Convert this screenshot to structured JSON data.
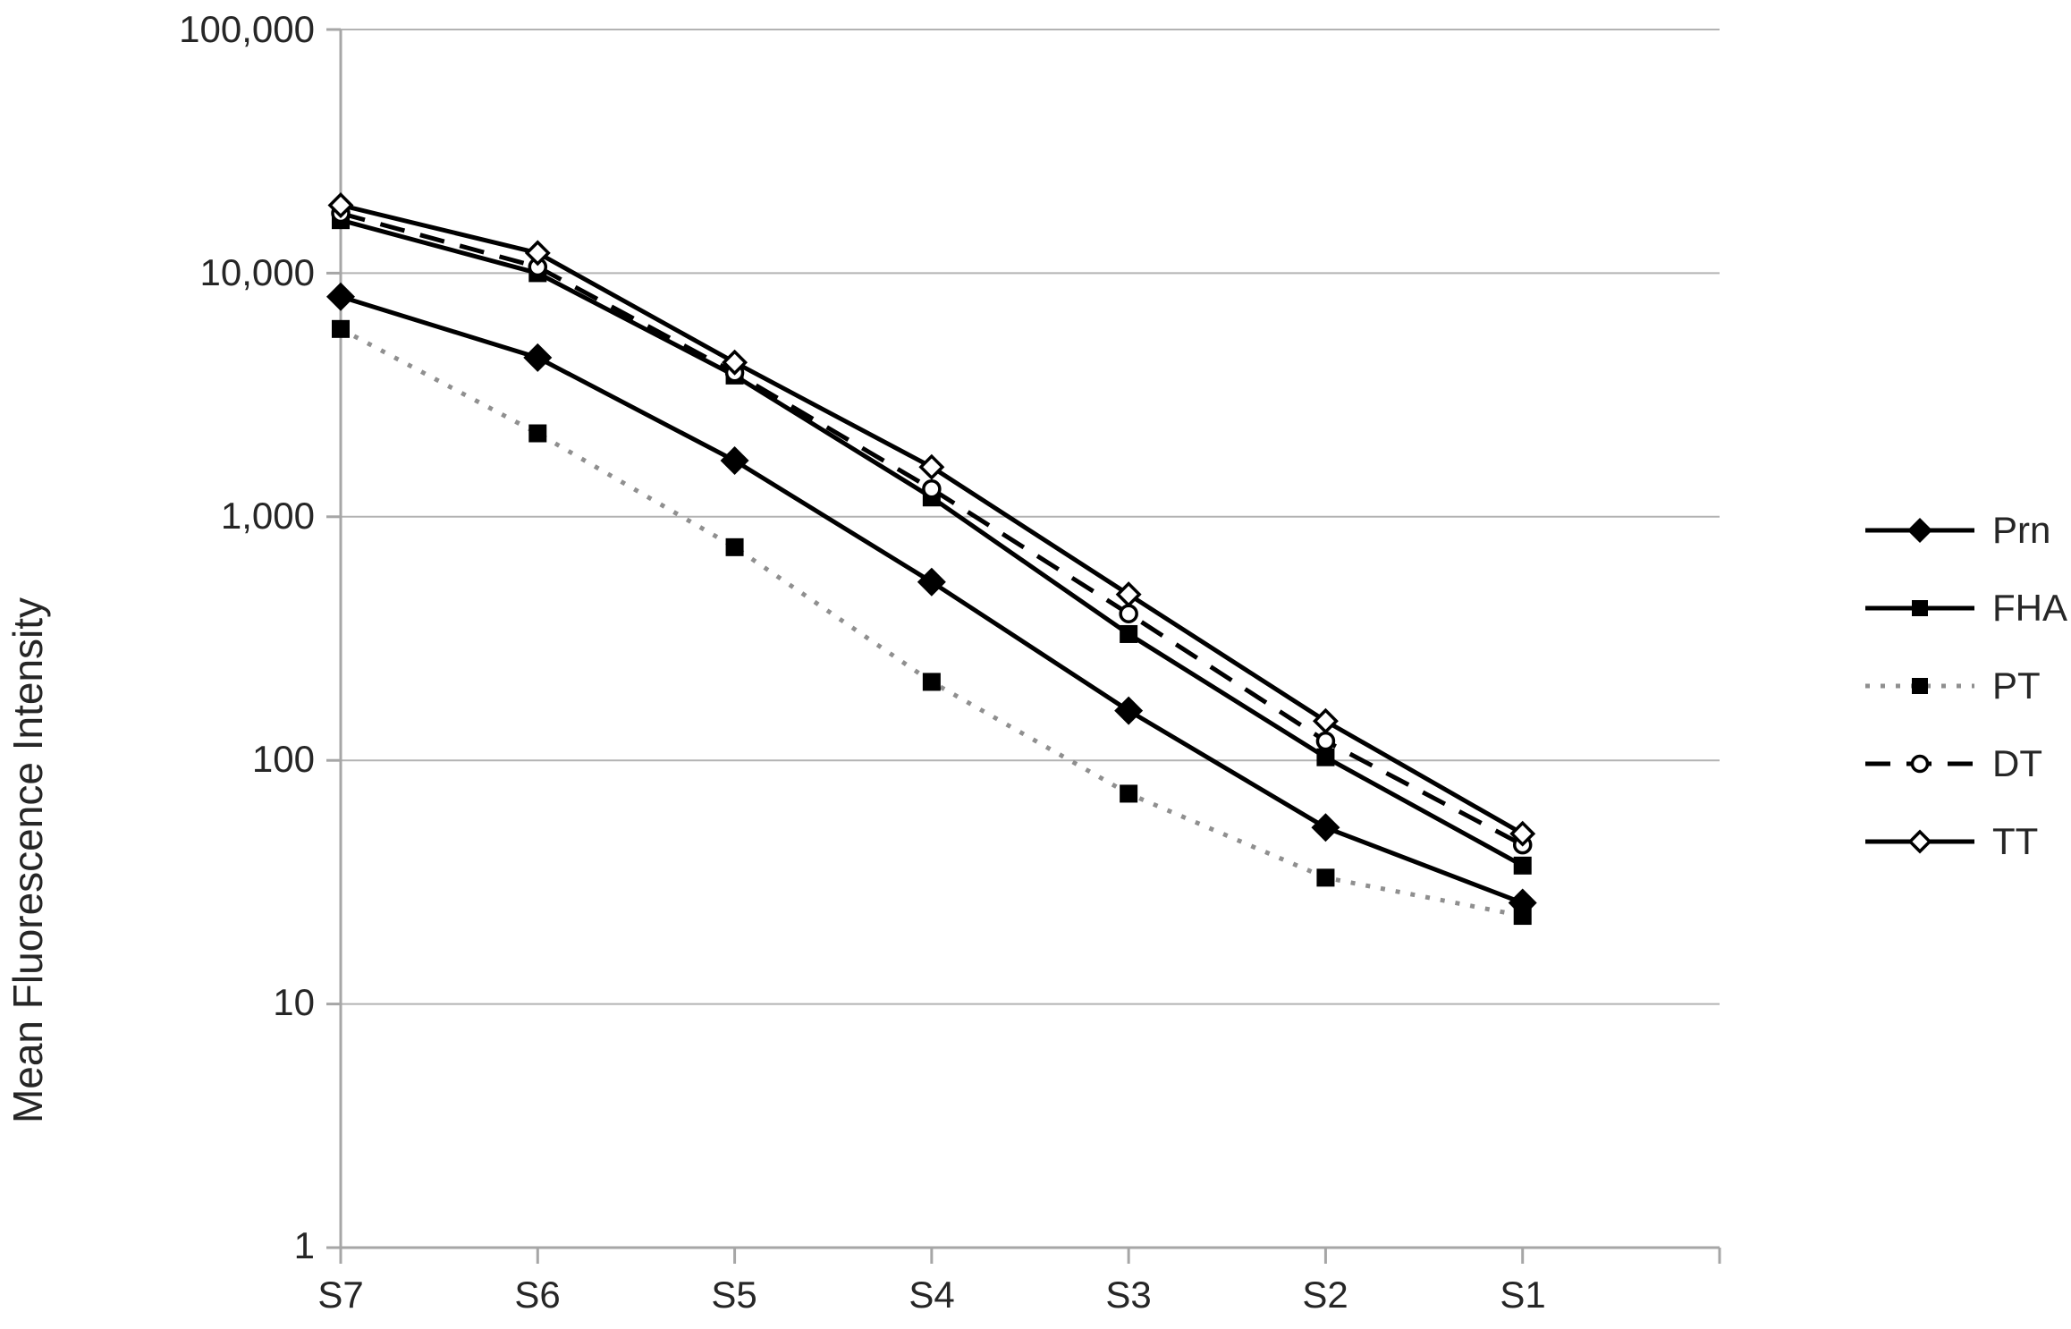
{
  "chart_data": {
    "type": "line",
    "title": "",
    "xlabel": "",
    "ylabel": "Mean Fluorescence Intensity",
    "y_scale": "log10",
    "ylim": [
      1,
      100000
    ],
    "y_ticks": [
      "100,000",
      "10,000",
      "1,000",
      "100",
      "10",
      "1"
    ],
    "y_tick_values": [
      100000,
      10000,
      1000,
      100,
      10,
      1
    ],
    "x_categories": [
      "S7",
      "S6",
      "S5",
      "S4",
      "S3",
      "S2",
      "S1"
    ],
    "grid": "horizontal",
    "legend_position": "right",
    "colors": {
      "axis": "#a6a6a6",
      "grid": "#b3b3b3",
      "text": "#262626",
      "series_black": "#000000",
      "pt_gray": "#8f8f8f"
    },
    "series": [
      {
        "name": "Prn",
        "line": "solid",
        "color": "#000000",
        "marker": "diamond-filled",
        "values": [
          8000,
          4500,
          1700,
          540,
          160,
          53,
          26
        ]
      },
      {
        "name": "FHA",
        "line": "solid",
        "color": "#000000",
        "marker": "square-filled",
        "values": [
          16500,
          10000,
          3800,
          1200,
          330,
          103,
          37
        ]
      },
      {
        "name": "PT",
        "line": "dotted",
        "color": "#8f8f8f",
        "marker": "square-filled",
        "values": [
          5900,
          2200,
          750,
          210,
          73,
          33,
          23
        ]
      },
      {
        "name": "DT",
        "line": "dashed",
        "color": "#000000",
        "marker": "circle-open",
        "values": [
          17600,
          10600,
          3900,
          1300,
          400,
          120,
          45
        ]
      },
      {
        "name": "TT",
        "line": "solid",
        "color": "#000000",
        "marker": "diamond-open",
        "values": [
          19000,
          12100,
          4300,
          1600,
          480,
          145,
          50
        ]
      }
    ]
  }
}
